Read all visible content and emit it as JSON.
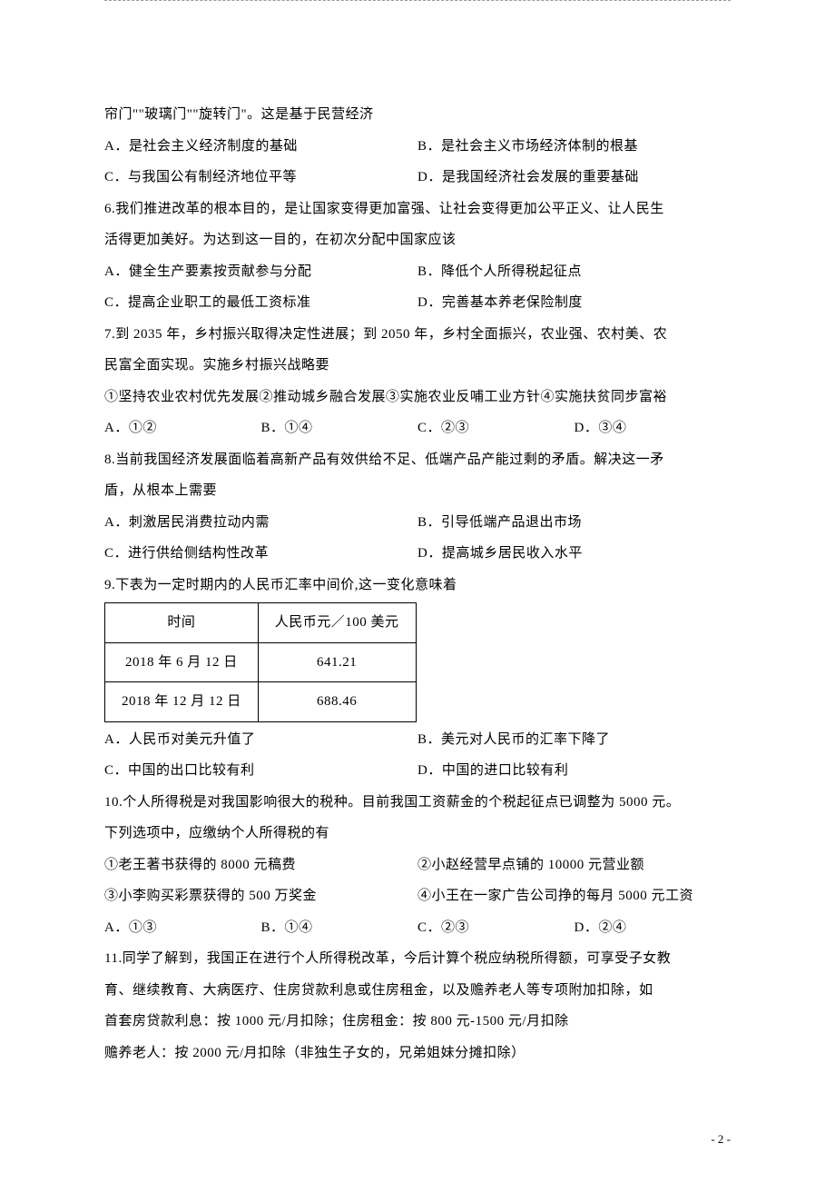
{
  "intro_line": "帘门\"\"玻璃门\"\"旋转门\"。这是基于民营经济",
  "q5": {
    "A": "A．是社会主义经济制度的基础",
    "B": "B．是社会主义市场经济体制的根基",
    "C": "C．与我国公有制经济地位平等",
    "D": "D．是我国经济社会发展的重要基础"
  },
  "q6": {
    "stem1": "6.我们推进改革的根本目的，是让国家变得更加富强、让社会变得更加公平正义、让人民生",
    "stem2": "活得更加美好。为达到这一目的，在初次分配中国家应该",
    "A": "A．健全生产要素按贡献参与分配",
    "B": "B．降低个人所得税起征点",
    "C": "C．提高企业职工的最低工资标准",
    "D": "D．完善基本养老保险制度"
  },
  "q7": {
    "stem1": "7.到 2035 年，乡村振兴取得决定性进展；到 2050 年，乡村全面振兴，农业强、农村美、农",
    "stem2": "民富全面实现。实施乡村振兴战略要",
    "stem3": "①坚持农业农村优先发展②推动城乡融合发展③实施农业反哺工业方针④实施扶贫同步富裕",
    "A": "A．①②",
    "B": "B．①④",
    "C": "C．②③",
    "D": "D．③④"
  },
  "q8": {
    "stem1": "8.当前我国经济发展面临着高新产品有效供给不足、低端产品产能过剩的矛盾。解决这一矛",
    "stem2": "盾，从根本上需要",
    "A": "A．刺激居民消费拉动内需",
    "B": "B．引导低端产品退出市场",
    "C": "C．进行供给侧结构性改革",
    "D": "D．提高城乡居民收入水平"
  },
  "q9": {
    "stem": "9.下表为一定时期内的人民币汇率中间价,这一变化意味着",
    "table": {
      "h1": "时间",
      "h2": "人民币元／100 美元",
      "r1c1": "2018 年 6 月 12 日",
      "r1c2": "641.21",
      "r2c1": "2018 年 12 月 12 日",
      "r2c2": "688.46"
    },
    "A": "A．人民币对美元升值了",
    "B": "B．美元对人民币的汇率下降了",
    "C": "C．中国的出口比较有利",
    "D": "D．中国的进口比较有利"
  },
  "q10": {
    "stem1": "10.个人所得税是对我国影响很大的税种。目前我国工资薪金的个税起征点已调整为 5000 元。",
    "stem2": "下列选项中，应缴纳个人所得税的有",
    "s1": "①老王著书获得的 8000 元稿费",
    "s2": "②小赵经营早点铺的 10000 元营业额",
    "s3": "③小李购买彩票获得的 500 万奖金",
    "s4": "④小王在一家广告公司挣的每月 5000 元工资",
    "A": "A．①③",
    "B": "B．①④",
    "C": "C．②③",
    "D": "D．②④"
  },
  "q11": {
    "stem1": "11.同学了解到，我国正在进行个人所得税改革，今后计算个税应纳税所得额，可享受子女教",
    "stem2": "育、继续教育、大病医疗、住房贷款利息或住房租金，以及赡养老人等专项附加扣除，如",
    "stem3": "首套房贷款利息：按 1000 元/月扣除；住房租金：按 800 元-1500 元/月扣除",
    "stem4": "赡养老人：按 2000 元/月扣除（非独生子女的，兄弟姐妹分摊扣除）"
  },
  "page_num": "- 2 -"
}
